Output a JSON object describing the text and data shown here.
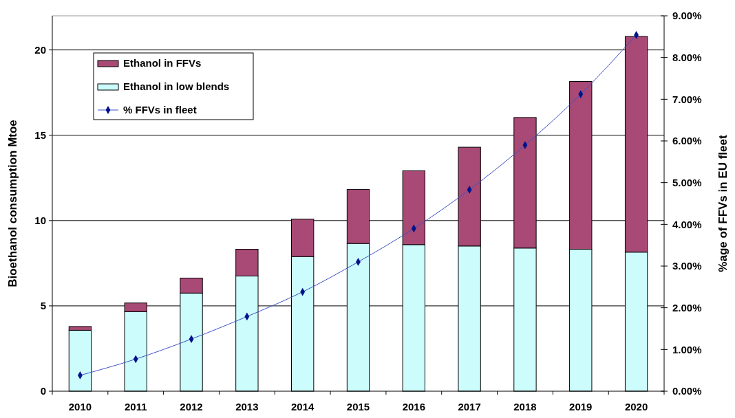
{
  "chart_data": {
    "type": "bar",
    "stacked": true,
    "categories": [
      "2010",
      "2011",
      "2012",
      "2013",
      "2014",
      "2015",
      "2016",
      "2017",
      "2018",
      "2019",
      "2020"
    ],
    "series": [
      {
        "name": "Ethanol in low blends",
        "color": "#ccfcfc",
        "values": [
          3.57,
          4.66,
          5.75,
          6.75,
          7.89,
          8.66,
          8.59,
          8.51,
          8.39,
          8.32,
          8.15
        ]
      },
      {
        "name": "Ethanol in FFVs",
        "color": "#a84a75",
        "values": [
          0.22,
          0.51,
          0.88,
          1.57,
          2.19,
          3.17,
          4.33,
          5.79,
          7.65,
          9.83,
          12.64
        ]
      },
      {
        "name": "% FFVs in fleet",
        "type": "line",
        "axis": "y2",
        "color": "#3f51c4",
        "marker": "diamond",
        "values": [
          0.38,
          0.77,
          1.25,
          1.79,
          2.38,
          3.1,
          3.9,
          4.83,
          5.9,
          7.12,
          8.54
        ]
      }
    ],
    "ylabel": "Bioethanol consumption Mtoe",
    "y2label": "%age of FFVs in EU fleet",
    "ylim": [
      0,
      22
    ],
    "yticks": [
      0,
      5,
      10,
      15,
      20
    ],
    "y2lim": [
      0,
      9
    ],
    "y2ticks": [
      {
        "value": 0,
        "label": "0.00%"
      },
      {
        "value": 1,
        "label": "1.00%"
      },
      {
        "value": 2,
        "label": "2.00%"
      },
      {
        "value": 3,
        "label": "3.00%"
      },
      {
        "value": 4,
        "label": "4.00%"
      },
      {
        "value": 5,
        "label": "5.00%"
      },
      {
        "value": 6,
        "label": "6.00%"
      },
      {
        "value": 7,
        "label": "7.00%"
      },
      {
        "value": 8,
        "label": "8.00%"
      },
      {
        "value": 9,
        "label": "9.00%"
      }
    ],
    "grid": "y",
    "legend": "top left"
  }
}
